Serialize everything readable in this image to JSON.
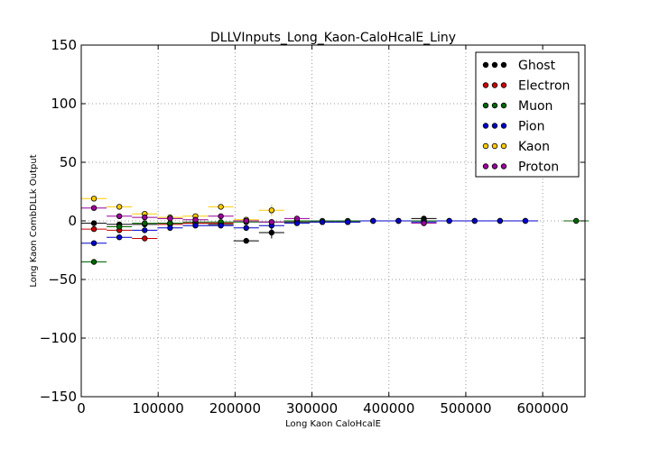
{
  "chart_data": {
    "type": "scatter",
    "title": "DLLVInputs_Long_Kaon-CaloHcalE_Liny",
    "xlabel": "Long Kaon CaloHcalE",
    "ylabel": "Long Kaon CombDLLk Output",
    "xlim": [
      0,
      655000
    ],
    "ylim": [
      -150,
      150
    ],
    "xticks": [
      0,
      100000,
      200000,
      300000,
      400000,
      500000,
      600000
    ],
    "xtick_labels": [
      "0",
      "100000",
      "200000",
      "300000",
      "400000",
      "500000",
      "600000"
    ],
    "yticks": [
      -150,
      -100,
      -50,
      0,
      50,
      100,
      150
    ],
    "ytick_labels": [
      "−150",
      "−100",
      "−50",
      "0",
      "50",
      "100",
      "150"
    ],
    "grid": true,
    "legend_position": "top-right",
    "bin_half_width": 16500,
    "series": [
      {
        "name": "Ghost",
        "color": "#000000",
        "x": [
          16500,
          49500,
          82500,
          115500,
          148500,
          181500,
          214500,
          247500,
          280500,
          313500,
          346500,
          379500,
          412500,
          445500
        ],
        "y": [
          -2,
          -3,
          -3,
          -2,
          -2,
          -3,
          -17,
          -10,
          -1,
          -1,
          -1,
          0,
          0,
          2
        ],
        "yerr": [
          1,
          1,
          1,
          1,
          1,
          1,
          2,
          5,
          1,
          1,
          1,
          1,
          1,
          1
        ]
      },
      {
        "name": "Electron",
        "color": "#cc0000",
        "x": [
          16500,
          49500,
          82500,
          115500,
          148500,
          181500,
          214500
        ],
        "y": [
          -7,
          -8,
          -15,
          -3,
          -2,
          -2,
          0
        ],
        "yerr": [
          1,
          1,
          1,
          1,
          1,
          1,
          1
        ]
      },
      {
        "name": "Muon",
        "color": "#006600",
        "x": [
          16500,
          49500,
          82500,
          115500,
          148500,
          181500,
          214500,
          247500,
          280500,
          313500,
          346500,
          379500,
          412500,
          445500,
          478500,
          511500,
          544500,
          577500,
          643500
        ],
        "y": [
          -35,
          -5,
          -2,
          -2,
          -1,
          -1,
          -1,
          -1,
          0,
          0,
          0,
          0,
          0,
          0,
          0,
          0,
          0,
          0,
          0
        ],
        "yerr": [
          1,
          1,
          1,
          1,
          1,
          1,
          1,
          1,
          1,
          1,
          1,
          1,
          1,
          1,
          1,
          1,
          1,
          1,
          1
        ]
      },
      {
        "name": "Pion",
        "color": "#0000cc",
        "x": [
          16500,
          49500,
          82500,
          115500,
          148500,
          181500,
          214500,
          247500,
          280500,
          313500,
          346500,
          379500,
          412500,
          445500,
          478500,
          511500,
          544500,
          577500
        ],
        "y": [
          -19,
          -14,
          -8,
          -6,
          -4,
          -4,
          -6,
          -4,
          -2,
          -1,
          -1,
          0,
          0,
          -1,
          0,
          0,
          0,
          0
        ],
        "yerr": [
          1,
          1,
          1,
          1,
          1,
          1,
          1,
          1,
          1,
          1,
          1,
          1,
          1,
          1,
          1,
          1,
          1,
          1
        ]
      },
      {
        "name": "Kaon",
        "color": "#ffcc00",
        "x": [
          16500,
          49500,
          82500,
          115500,
          148500,
          181500,
          214500,
          247500
        ],
        "y": [
          19,
          12,
          6,
          3,
          4,
          12,
          1,
          9
        ],
        "yerr": [
          2,
          1,
          1,
          1,
          2,
          2,
          2,
          5
        ]
      },
      {
        "name": "Proton",
        "color": "#990099",
        "x": [
          16500,
          49500,
          82500,
          115500,
          148500,
          181500,
          214500,
          247500,
          280500,
          445500
        ],
        "y": [
          11,
          4,
          3,
          2,
          1,
          4,
          0,
          -1,
          2,
          -2
        ],
        "yerr": [
          1,
          1,
          1,
          1,
          1,
          1,
          1,
          1,
          1,
          1
        ]
      }
    ]
  }
}
